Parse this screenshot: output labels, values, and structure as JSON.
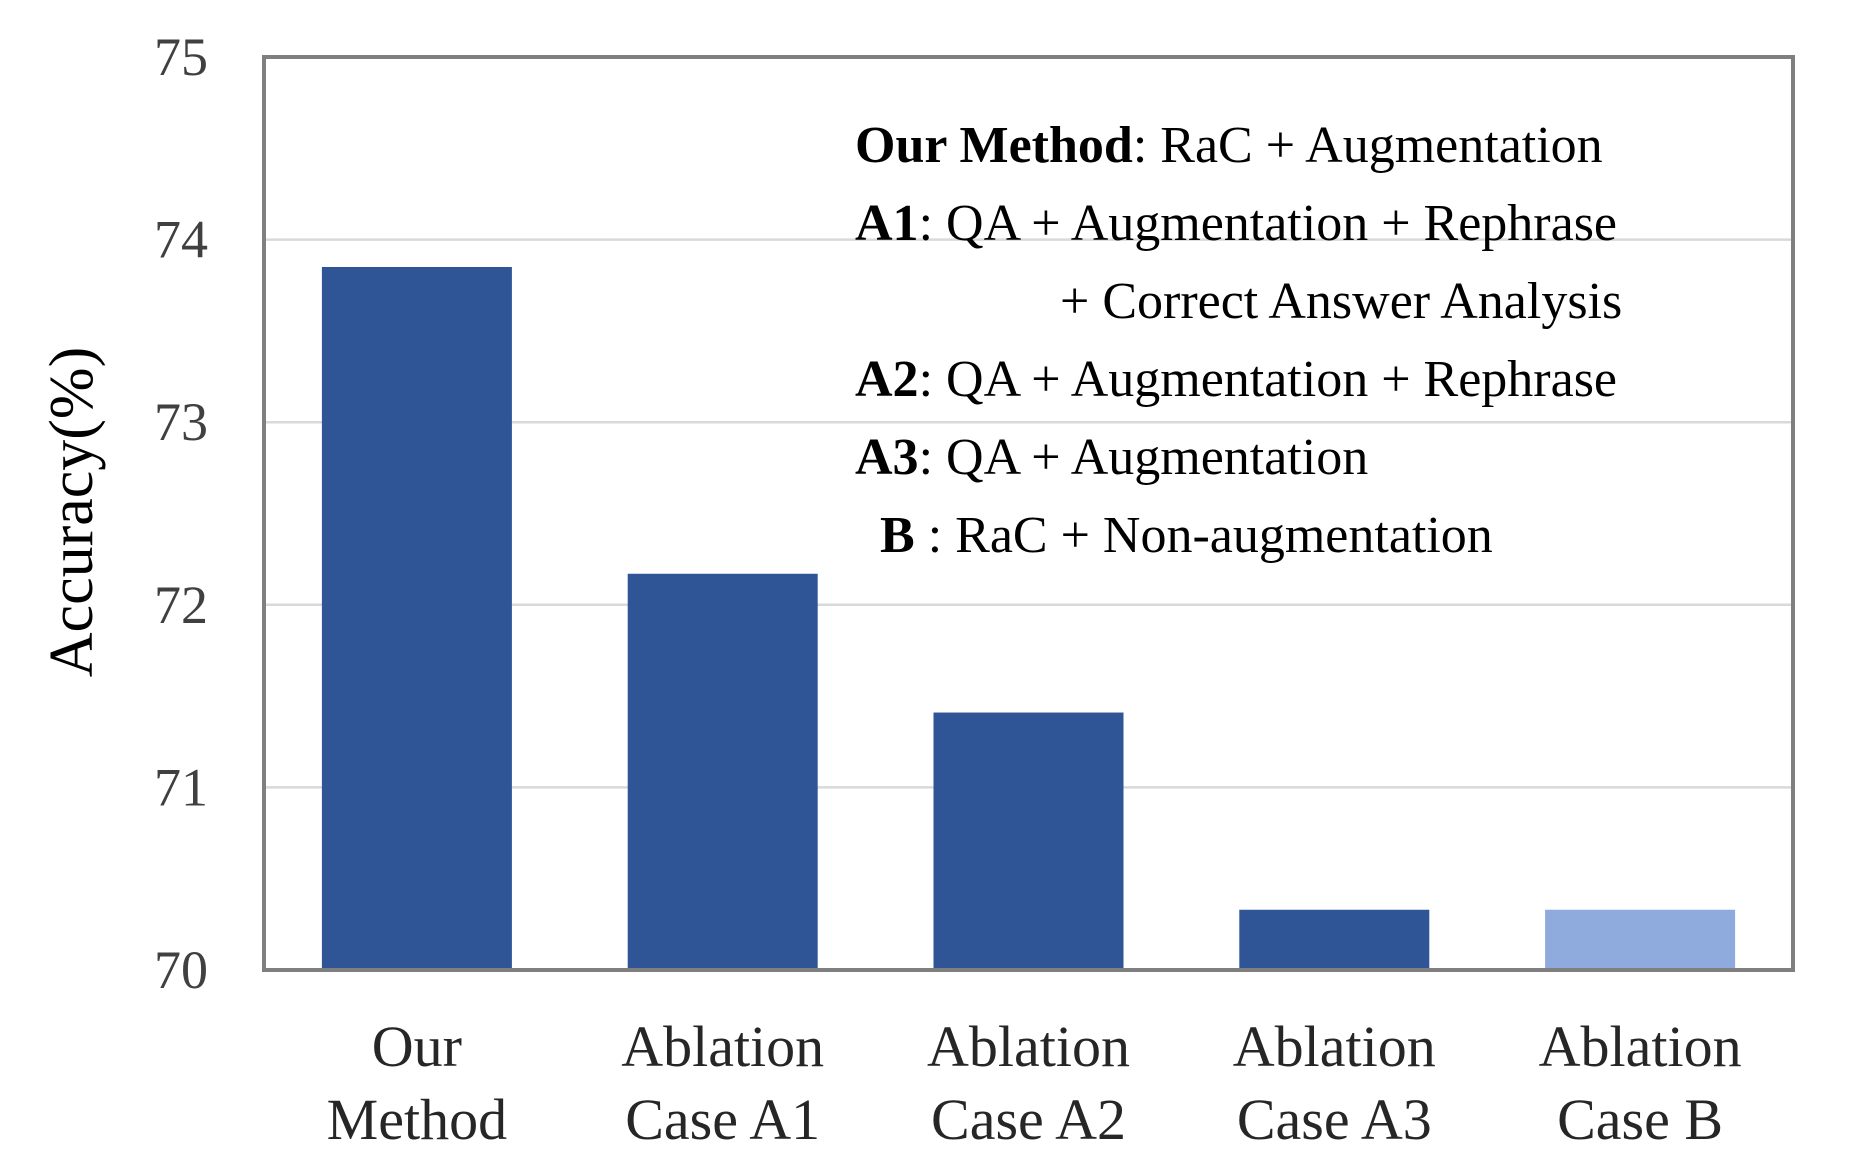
{
  "chart_data": {
    "type": "bar",
    "ylabel": "Accuracy(%)",
    "xlabel": "",
    "ylim": [
      70,
      75
    ],
    "yticks": [
      70,
      71,
      72,
      73,
      74,
      75
    ],
    "grid": true,
    "categories": [
      [
        "Our",
        "Method"
      ],
      [
        "Ablation",
        "Case A1"
      ],
      [
        "Ablation",
        "Case A2"
      ],
      [
        "Ablation",
        "Case A3"
      ],
      [
        "Ablation",
        "Case B"
      ]
    ],
    "values": [
      73.85,
      72.17,
      71.41,
      70.33,
      70.33
    ],
    "colors": [
      "#2f5597",
      "#2f5597",
      "#2f5597",
      "#2f5597",
      "#8faadc"
    ],
    "annotations": [
      {
        "key": "Our Method",
        "text": ": RaC + Augmentation"
      },
      {
        "key": "A1",
        "text": ": QA + Augmentation + Rephrase"
      },
      {
        "key": "",
        "text": "+ Correct Answer Analysis"
      },
      {
        "key": "A2",
        "text": ": QA + Augmentation + Rephrase"
      },
      {
        "key": "A3",
        "text": ": QA + Augmentation"
      },
      {
        "key": "B",
        "text": " : RaC + Non-augmentation"
      }
    ]
  },
  "colors": {
    "frame": "#7f7f7f",
    "grid": "#d9d9d9"
  }
}
